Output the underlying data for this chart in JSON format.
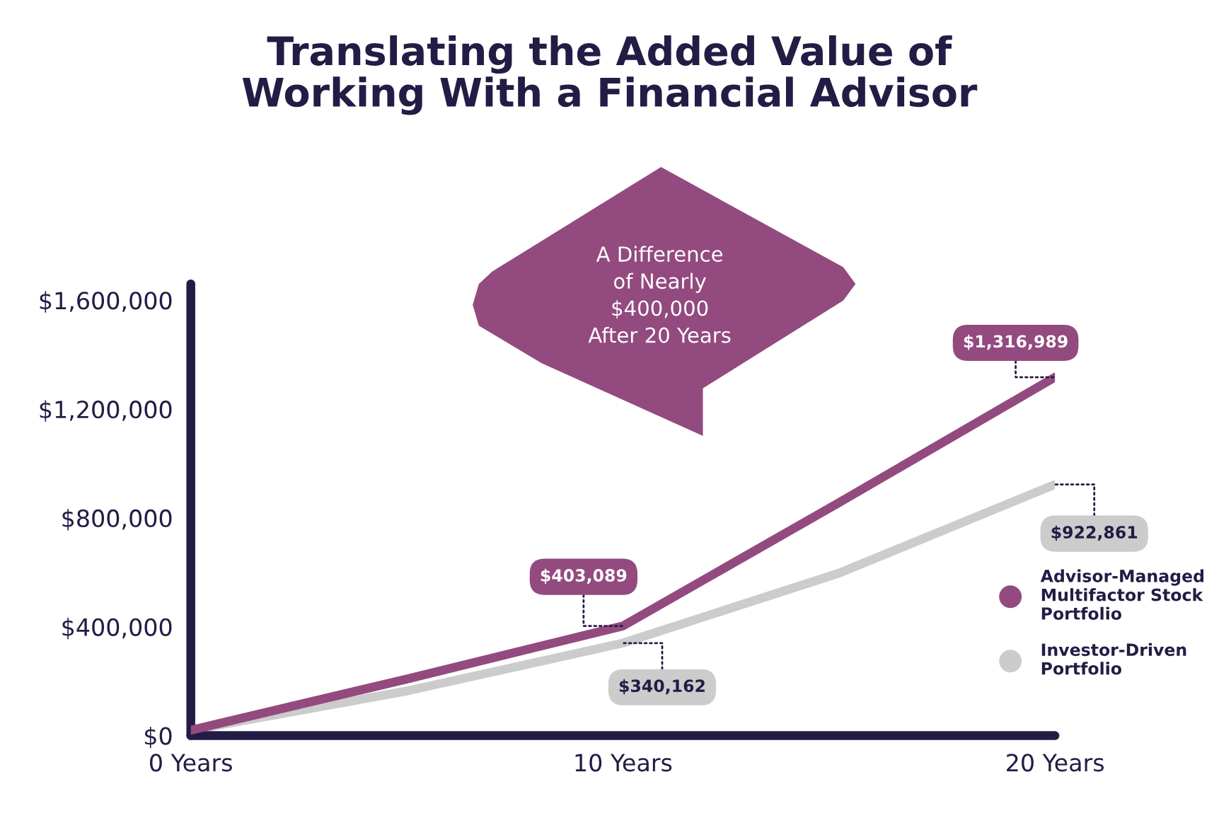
{
  "chart_data": {
    "type": "line",
    "title": "Translating the Added Value of\nWorking With a Financial Advisor",
    "x": [
      0,
      5,
      10,
      15,
      20
    ],
    "series": [
      {
        "name": "Advisor-Managed\nMultifactor Stock\nPortfolio",
        "color": "#934a7f",
        "values": [
          20000,
          208000,
          403089,
          856000,
          1316989
        ],
        "value_labels": [
          null,
          null,
          "$403,089",
          null,
          "$1,316,989"
        ]
      },
      {
        "name": "Investor-Driven\nPortfolio",
        "color": "#cccccc",
        "values": [
          20000,
          164000,
          340162,
          597000,
          922861
        ],
        "value_labels": [
          null,
          null,
          "$340,162",
          null,
          "$922,861"
        ]
      }
    ],
    "xlim": [
      0,
      20
    ],
    "xticks": [
      {
        "value": 0,
        "label": "0 Years"
      },
      {
        "value": 10,
        "label": "10 Years"
      },
      {
        "value": 20,
        "label": "20 Years"
      }
    ],
    "ylim": [
      0,
      1660000
    ],
    "yticks": [
      {
        "value": 0,
        "label": "$0"
      },
      {
        "value": 400000,
        "label": "$400,000"
      },
      {
        "value": 800000,
        "label": "$800,000"
      },
      {
        "value": 1200000,
        "label": "$1,200,000"
      },
      {
        "value": 1600000,
        "label": "$1,600,000"
      }
    ],
    "annotations": [
      "A Difference\nof Nearly\n$400,000\nAfter 20 Years"
    ],
    "grid": false,
    "legend": "bottom right",
    "marker": "none",
    "line_style": "solid"
  }
}
